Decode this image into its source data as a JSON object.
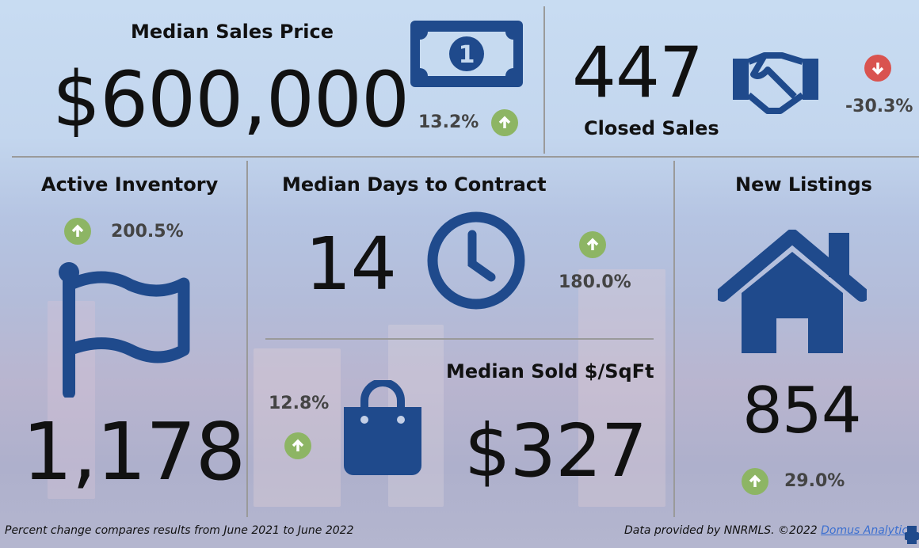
{
  "colors": {
    "icon": "#1f4a8c",
    "up": "#8db564",
    "down": "#d9534f"
  },
  "median_sales_price": {
    "title": "Median Sales Price",
    "value": "$600,000",
    "change": "13.2%",
    "direction": "up",
    "icon": "dollar-bill-icon"
  },
  "closed_sales": {
    "title": "Closed Sales",
    "value": "447",
    "change": "-30.3%",
    "direction": "down",
    "icon": "handshake-icon"
  },
  "active_inventory": {
    "title": "Active Inventory",
    "value": "1,178",
    "change": "200.5%",
    "direction": "up",
    "icon": "flag-icon"
  },
  "median_days": {
    "title": "Median Days to Contract",
    "value": "14",
    "change": "180.0%",
    "direction": "up",
    "icon": "clock-icon"
  },
  "median_sqft": {
    "title": "Median Sold $/SqFt",
    "value": "$327",
    "change": "12.8%",
    "direction": "up",
    "icon": "shopping-bag-icon"
  },
  "new_listings": {
    "title": "New Listings",
    "value": "854",
    "change": "29.0%",
    "direction": "up",
    "icon": "house-icon"
  },
  "footer": {
    "note": "Percent change compares results from June 2021 to June 2022",
    "credit": "Data provided by NNRMLS. ©2022 ",
    "link": "Domus Analytics"
  }
}
